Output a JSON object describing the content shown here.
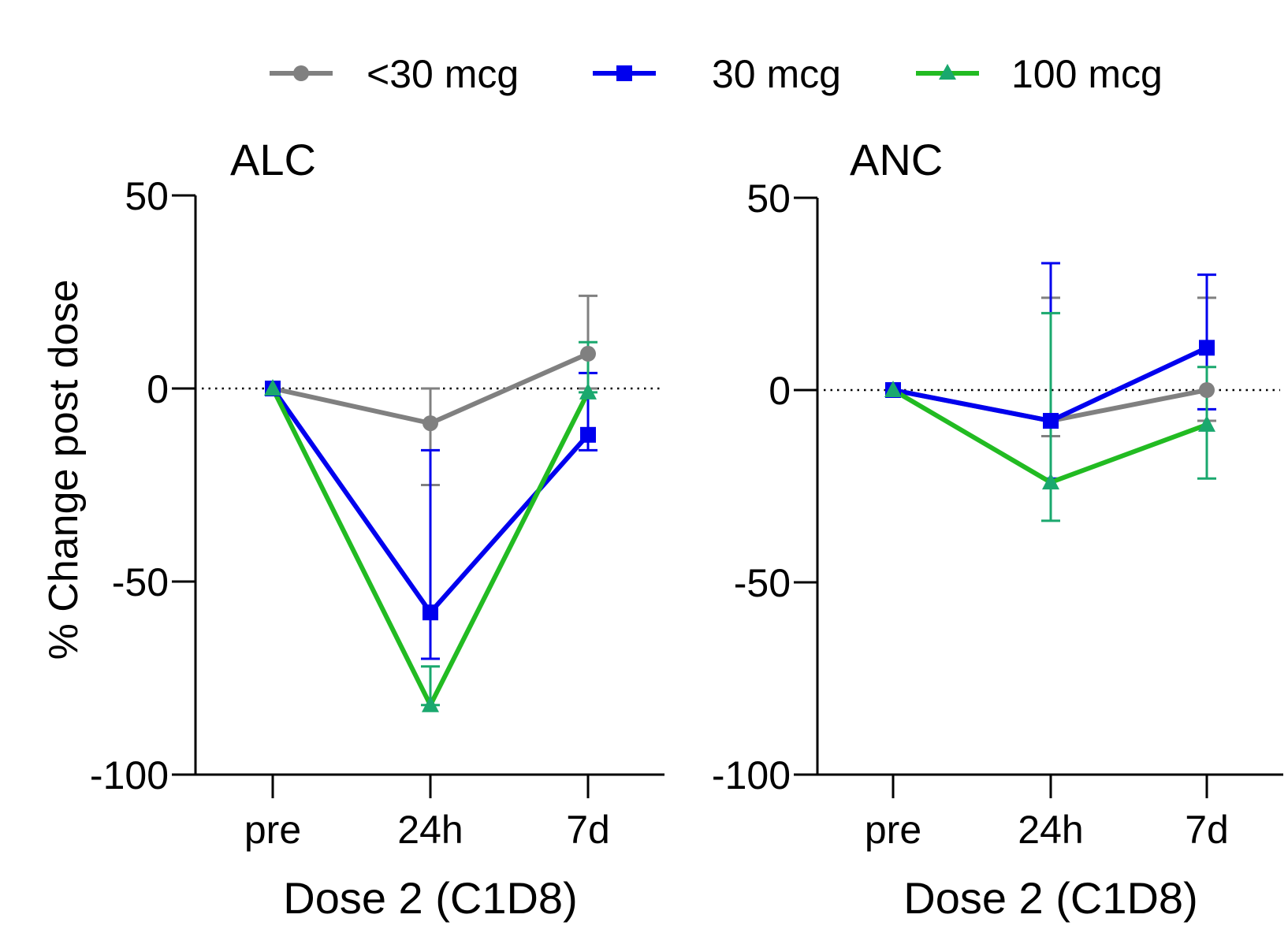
{
  "legend": {
    "items": [
      {
        "label": "<30 mcg",
        "color": "#808080",
        "marker": "circle"
      },
      {
        "label": "30 mcg",
        "color": "#0000ee",
        "marker": "square"
      },
      {
        "label": "100 mcg",
        "color": "#22bb22",
        "marker": "triangle"
      }
    ]
  },
  "y_axis_label": "% Change post dose",
  "chart_data": [
    {
      "type": "line",
      "title": "ALC",
      "xlabel": "Dose 2 (C1D8)",
      "ylabel": "% Change post dose",
      "categories": [
        "pre",
        "24h",
        "7d"
      ],
      "ylim": [
        -100,
        50
      ],
      "yticks": [
        50,
        0,
        -50,
        -100
      ],
      "reference_line": {
        "y": 0,
        "style": "dotted"
      },
      "series": [
        {
          "name": "<30 mcg",
          "color": "#808080",
          "errorbar_color": "#808080",
          "marker": "circle",
          "values": [
            0,
            -9,
            9
          ],
          "err_low": [
            null,
            -25,
            0
          ],
          "err_high": [
            null,
            0,
            24
          ]
        },
        {
          "name": "30 mcg",
          "color": "#0000ee",
          "errorbar_color": "#0000ee",
          "marker": "square",
          "values": [
            0,
            -58,
            -12
          ],
          "err_low": [
            null,
            -70,
            -16
          ],
          "err_high": [
            null,
            -16,
            4
          ]
        },
        {
          "name": "100 mcg",
          "color": "#22bb22",
          "errorbar_color": "#1aa86e",
          "marker": "triangle",
          "values": [
            0,
            -82,
            -1
          ],
          "err_low": [
            null,
            -82,
            -1
          ],
          "err_high": [
            null,
            -72,
            12
          ]
        }
      ]
    },
    {
      "type": "line",
      "title": "ANC",
      "xlabel": "Dose 2 (C1D8)",
      "ylabel": "",
      "categories": [
        "pre",
        "24h",
        "7d"
      ],
      "ylim": [
        -100,
        50
      ],
      "yticks": [
        50,
        0,
        -50,
        -100
      ],
      "reference_line": {
        "y": 0,
        "style": "dotted"
      },
      "series": [
        {
          "name": "<30 mcg",
          "color": "#808080",
          "errorbar_color": "#808080",
          "marker": "circle",
          "values": [
            0,
            -8,
            0
          ],
          "err_low": [
            null,
            -12,
            -8
          ],
          "err_high": [
            null,
            24,
            24
          ]
        },
        {
          "name": "30 mcg",
          "color": "#0000ee",
          "errorbar_color": "#0000ee",
          "marker": "square",
          "values": [
            0,
            -8,
            11
          ],
          "err_low": [
            null,
            -23,
            -5
          ],
          "err_high": [
            null,
            33,
            30
          ]
        },
        {
          "name": "100 mcg",
          "color": "#22bb22",
          "errorbar_color": "#1aa86e",
          "marker": "triangle",
          "values": [
            0,
            -24,
            -9
          ],
          "err_low": [
            null,
            -34,
            -23
          ],
          "err_high": [
            null,
            20,
            6
          ]
        }
      ]
    }
  ]
}
